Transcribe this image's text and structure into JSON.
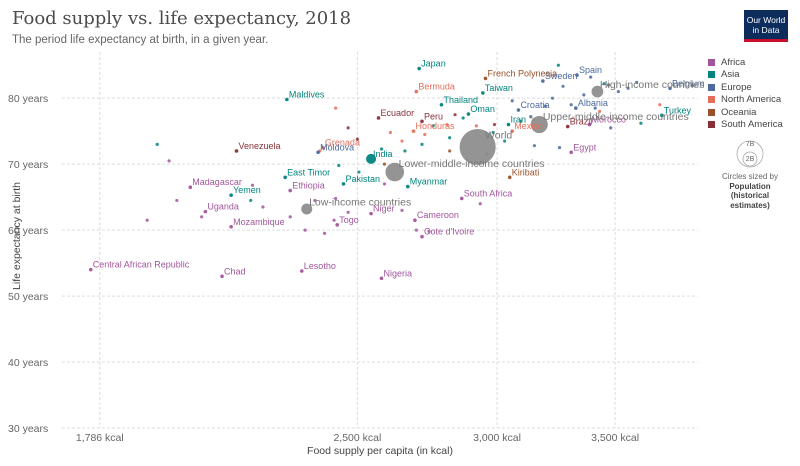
{
  "header": {
    "title": "Food supply vs. life expectancy, 2018",
    "subtitle": "The period life expectancy at birth, in a given year.",
    "logo_line1": "Our World",
    "logo_line2": "in Data"
  },
  "colors": {
    "Africa": "#a2559c",
    "Asia": "#00847e",
    "Europe": "#4c6a9c",
    "North America": "#e56e5a",
    "Oceania": "#9a5129",
    "South America": "#883039",
    "aggregate": "#8c8c8c"
  },
  "legend": {
    "items": [
      "Africa",
      "Asia",
      "Europe",
      "North America",
      "Oceania",
      "South America"
    ],
    "size_circle_top": "7B",
    "size_circle_inner": "2B",
    "size_caption": "Circles sized by",
    "size_caption_bold1": "Population",
    "size_caption_bold2": "(historical",
    "size_caption_bold3": "estimates)"
  },
  "chart_data": {
    "type": "scatter",
    "title": "Food supply vs. life expectancy, 2018",
    "xlabel": "Food supply per capita (in kcal)",
    "ylabel": "Life expectancy at birth",
    "x_scale": "log",
    "xlim": [
      1700,
      3900
    ],
    "ylim": [
      30,
      87
    ],
    "x_ticks": [
      1786,
      2500,
      3000,
      3500
    ],
    "x_tick_labels": [
      "1,786 kcal",
      "2,500 kcal",
      "3,000 kcal",
      "3,500 kcal"
    ],
    "y_ticks": [
      30,
      40,
      50,
      60,
      70,
      80
    ],
    "y_tick_labels": [
      "30 years",
      "40 years",
      "50 years",
      "60 years",
      "70 years",
      "80 years"
    ],
    "grid": true,
    "legend_position": "right",
    "labeled_points": [
      {
        "name": "Japan",
        "region": "Asia",
        "x": 2710,
        "y": 84.5
      },
      {
        "name": "French Polynesia",
        "region": "Oceania",
        "x": 2955,
        "y": 83.0
      },
      {
        "name": "Sweden",
        "region": "Europe",
        "x": 3185,
        "y": 82.6
      },
      {
        "name": "Spain",
        "region": "Europe",
        "x": 3330,
        "y": 83.5
      },
      {
        "name": "High-income countries",
        "region": "aggregate",
        "x": 3420,
        "y": 81.0,
        "size": 1.2
      },
      {
        "name": "Belgium",
        "region": "Europe",
        "x": 3760,
        "y": 81.5
      },
      {
        "name": "Maldives",
        "region": "Asia",
        "x": 2280,
        "y": 79.8
      },
      {
        "name": "Bermuda",
        "region": "North America",
        "x": 2700,
        "y": 81.0
      },
      {
        "name": "Taiwan",
        "region": "Asia",
        "x": 2945,
        "y": 80.8
      },
      {
        "name": "Albania",
        "region": "Europe",
        "x": 3325,
        "y": 78.5
      },
      {
        "name": "Thailand",
        "region": "Asia",
        "x": 2790,
        "y": 79.0
      },
      {
        "name": "Oman",
        "region": "Asia",
        "x": 2890,
        "y": 77.6
      },
      {
        "name": "Croatia",
        "region": "Europe",
        "x": 3085,
        "y": 78.2
      },
      {
        "name": "Upper-middle-income countries",
        "region": "aggregate",
        "x": 3170,
        "y": 76.0,
        "size": 2.6
      },
      {
        "name": "Turkey",
        "region": "Asia",
        "x": 3720,
        "y": 77.4
      },
      {
        "name": "Ecuador",
        "region": "South America",
        "x": 2570,
        "y": 77.0
      },
      {
        "name": "Peru",
        "region": "South America",
        "x": 2720,
        "y": 76.5
      },
      {
        "name": "Iran",
        "region": "Asia",
        "x": 3045,
        "y": 76.0
      },
      {
        "name": "Brazil",
        "region": "South America",
        "x": 3290,
        "y": 75.7
      },
      {
        "name": "Grenada",
        "region": "North America",
        "x": 2390,
        "y": 72.5
      },
      {
        "name": "World",
        "region": "aggregate",
        "x": 2925,
        "y": 72.6,
        "size": 7.6
      },
      {
        "name": "Mexico",
        "region": "North America",
        "x": 3060,
        "y": 75.0
      },
      {
        "name": "Morocco",
        "region": "Africa",
        "x": 3385,
        "y": 76.0
      },
      {
        "name": "Venezuela",
        "region": "South America",
        "x": 2135,
        "y": 72.0
      },
      {
        "name": "Honduras",
        "region": "North America",
        "x": 2690,
        "y": 75.0
      },
      {
        "name": "Egypt",
        "region": "Africa",
        "x": 3305,
        "y": 71.8
      },
      {
        "name": "Moldova",
        "region": "Europe",
        "x": 2375,
        "y": 71.8
      },
      {
        "name": "India",
        "region": "Asia",
        "x": 2545,
        "y": 70.8,
        "size": 1.4
      },
      {
        "name": "Lower-middle-income countries",
        "region": "aggregate",
        "x": 2625,
        "y": 68.8,
        "size": 3.0
      },
      {
        "name": "East Timor",
        "region": "Asia",
        "x": 2275,
        "y": 68.0
      },
      {
        "name": "Pakistan",
        "region": "Asia",
        "x": 2455,
        "y": 67.0
      },
      {
        "name": "Myanmar",
        "region": "Asia",
        "x": 2670,
        "y": 66.6
      },
      {
        "name": "Kiribati",
        "region": "Oceania",
        "x": 3050,
        "y": 68.0
      },
      {
        "name": "Ethiopia",
        "region": "Africa",
        "x": 2290,
        "y": 66.0
      },
      {
        "name": "Madagascar",
        "region": "Africa",
        "x": 2010,
        "y": 66.5
      },
      {
        "name": "Yemen",
        "region": "Asia",
        "x": 2120,
        "y": 65.3
      },
      {
        "name": "South Africa",
        "region": "Africa",
        "x": 2865,
        "y": 64.8
      },
      {
        "name": "Low-income countries",
        "region": "aggregate",
        "x": 2340,
        "y": 63.2,
        "size": 1.0
      },
      {
        "name": "Uganda",
        "region": "Africa",
        "x": 2050,
        "y": 62.8
      },
      {
        "name": "Niger",
        "region": "Africa",
        "x": 2545,
        "y": 62.5
      },
      {
        "name": "Mozambique",
        "region": "Africa",
        "x": 2120,
        "y": 60.5
      },
      {
        "name": "Togo",
        "region": "Africa",
        "x": 2435,
        "y": 60.8
      },
      {
        "name": "Cameroon",
        "region": "Africa",
        "x": 2695,
        "y": 61.5
      },
      {
        "name": "Cote d'Ivoire",
        "region": "Africa",
        "x": 2720,
        "y": 59.0
      },
      {
        "name": "Central African Republic",
        "region": "Africa",
        "x": 1765,
        "y": 54.0
      },
      {
        "name": "Chad",
        "region": "Africa",
        "x": 2095,
        "y": 53.0
      },
      {
        "name": "Lesotho",
        "region": "Africa",
        "x": 2325,
        "y": 53.8
      },
      {
        "name": "Nigeria",
        "region": "Africa",
        "x": 2580,
        "y": 52.7
      }
    ],
    "other_points": [
      {
        "region": "Asia",
        "x": 1925,
        "y": 73.0
      },
      {
        "region": "Africa",
        "x": 1900,
        "y": 61.5
      },
      {
        "region": "Africa",
        "x": 1975,
        "y": 64.5
      },
      {
        "region": "Africa",
        "x": 2040,
        "y": 62.0
      },
      {
        "region": "Africa",
        "x": 2180,
        "y": 66.8
      },
      {
        "region": "Africa",
        "x": 2210,
        "y": 63.5
      },
      {
        "region": "Africa",
        "x": 2290,
        "y": 62.0
      },
      {
        "region": "Africa",
        "x": 2335,
        "y": 60.0
      },
      {
        "region": "Africa",
        "x": 2395,
        "y": 59.5
      },
      {
        "region": "Africa",
        "x": 2425,
        "y": 61.5
      },
      {
        "region": "Africa",
        "x": 2470,
        "y": 62.7
      },
      {
        "region": "Africa",
        "x": 2650,
        "y": 63.0
      },
      {
        "region": "Africa",
        "x": 2700,
        "y": 60.0
      },
      {
        "region": "Africa",
        "x": 2745,
        "y": 59.8
      },
      {
        "region": "Africa",
        "x": 2430,
        "y": 64.8
      },
      {
        "region": "Africa",
        "x": 2590,
        "y": 67.0
      },
      {
        "region": "Africa",
        "x": 2935,
        "y": 64.0
      },
      {
        "region": "Africa",
        "x": 2365,
        "y": 64.5
      },
      {
        "region": "Africa",
        "x": 1955,
        "y": 70.5
      },
      {
        "region": "Asia",
        "x": 2175,
        "y": 64.5
      },
      {
        "region": "Asia",
        "x": 2505,
        "y": 68.8
      },
      {
        "region": "Asia",
        "x": 2580,
        "y": 72.3
      },
      {
        "region": "Asia",
        "x": 2660,
        "y": 72.0
      },
      {
        "region": "Asia",
        "x": 2720,
        "y": 73.0
      },
      {
        "region": "Asia",
        "x": 2760,
        "y": 75.8
      },
      {
        "region": "Asia",
        "x": 2820,
        "y": 74.0
      },
      {
        "region": "Asia",
        "x": 2870,
        "y": 77.0
      },
      {
        "region": "Asia",
        "x": 2985,
        "y": 74.8
      },
      {
        "region": "Asia",
        "x": 3030,
        "y": 73.5
      },
      {
        "region": "Asia",
        "x": 3095,
        "y": 76.5
      },
      {
        "region": "Asia",
        "x": 3250,
        "y": 85.0
      },
      {
        "region": "Asia",
        "x": 3620,
        "y": 76.2
      },
      {
        "region": "Asia",
        "x": 3450,
        "y": 82.2
      },
      {
        "region": "Asia",
        "x": 2440,
        "y": 69.8
      },
      {
        "region": "Europe",
        "x": 3390,
        "y": 83.2
      },
      {
        "region": "Europe",
        "x": 3470,
        "y": 82.0
      },
      {
        "region": "Europe",
        "x": 3560,
        "y": 81.5
      },
      {
        "region": "Europe",
        "x": 3515,
        "y": 81.0
      },
      {
        "region": "Europe",
        "x": 3270,
        "y": 81.8
      },
      {
        "region": "Europe",
        "x": 3360,
        "y": 80.5
      },
      {
        "region": "Europe",
        "x": 3225,
        "y": 80.0
      },
      {
        "region": "Europe",
        "x": 3305,
        "y": 79.0
      },
      {
        "region": "Europe",
        "x": 3410,
        "y": 78.5
      },
      {
        "region": "Europe",
        "x": 3135,
        "y": 77.2
      },
      {
        "region": "Europe",
        "x": 3195,
        "y": 78.8
      },
      {
        "region": "Europe",
        "x": 3480,
        "y": 75.5
      },
      {
        "region": "Europe",
        "x": 3255,
        "y": 72.5
      },
      {
        "region": "Europe",
        "x": 3150,
        "y": 72.8
      },
      {
        "region": "Europe",
        "x": 3600,
        "y": 82.4
      },
      {
        "region": "Europe",
        "x": 3870,
        "y": 81.9
      },
      {
        "region": "Europe",
        "x": 3060,
        "y": 79.6
      },
      {
        "region": "North America",
        "x": 2430,
        "y": 78.5
      },
      {
        "region": "North America",
        "x": 2610,
        "y": 74.8
      },
      {
        "region": "North America",
        "x": 2730,
        "y": 74.5
      },
      {
        "region": "North America",
        "x": 2810,
        "y": 76.0
      },
      {
        "region": "North America",
        "x": 2920,
        "y": 75.8
      },
      {
        "region": "North America",
        "x": 3710,
        "y": 79.0
      },
      {
        "region": "North America",
        "x": 3430,
        "y": 78.0
      },
      {
        "region": "North America",
        "x": 2380,
        "y": 72.0
      },
      {
        "region": "North America",
        "x": 2650,
        "y": 73.5
      },
      {
        "region": "South America",
        "x": 2470,
        "y": 75.5
      },
      {
        "region": "South America",
        "x": 2840,
        "y": 77.5
      },
      {
        "region": "South America",
        "x": 2990,
        "y": 76.0
      },
      {
        "region": "South America",
        "x": 3145,
        "y": 76.8
      },
      {
        "region": "South America",
        "x": 2500,
        "y": 73.8
      },
      {
        "region": "Oceania",
        "x": 2820,
        "y": 72.0
      },
      {
        "region": "Oceania",
        "x": 2960,
        "y": 71.5
      },
      {
        "region": "Oceania",
        "x": 2590,
        "y": 70.0
      }
    ]
  }
}
